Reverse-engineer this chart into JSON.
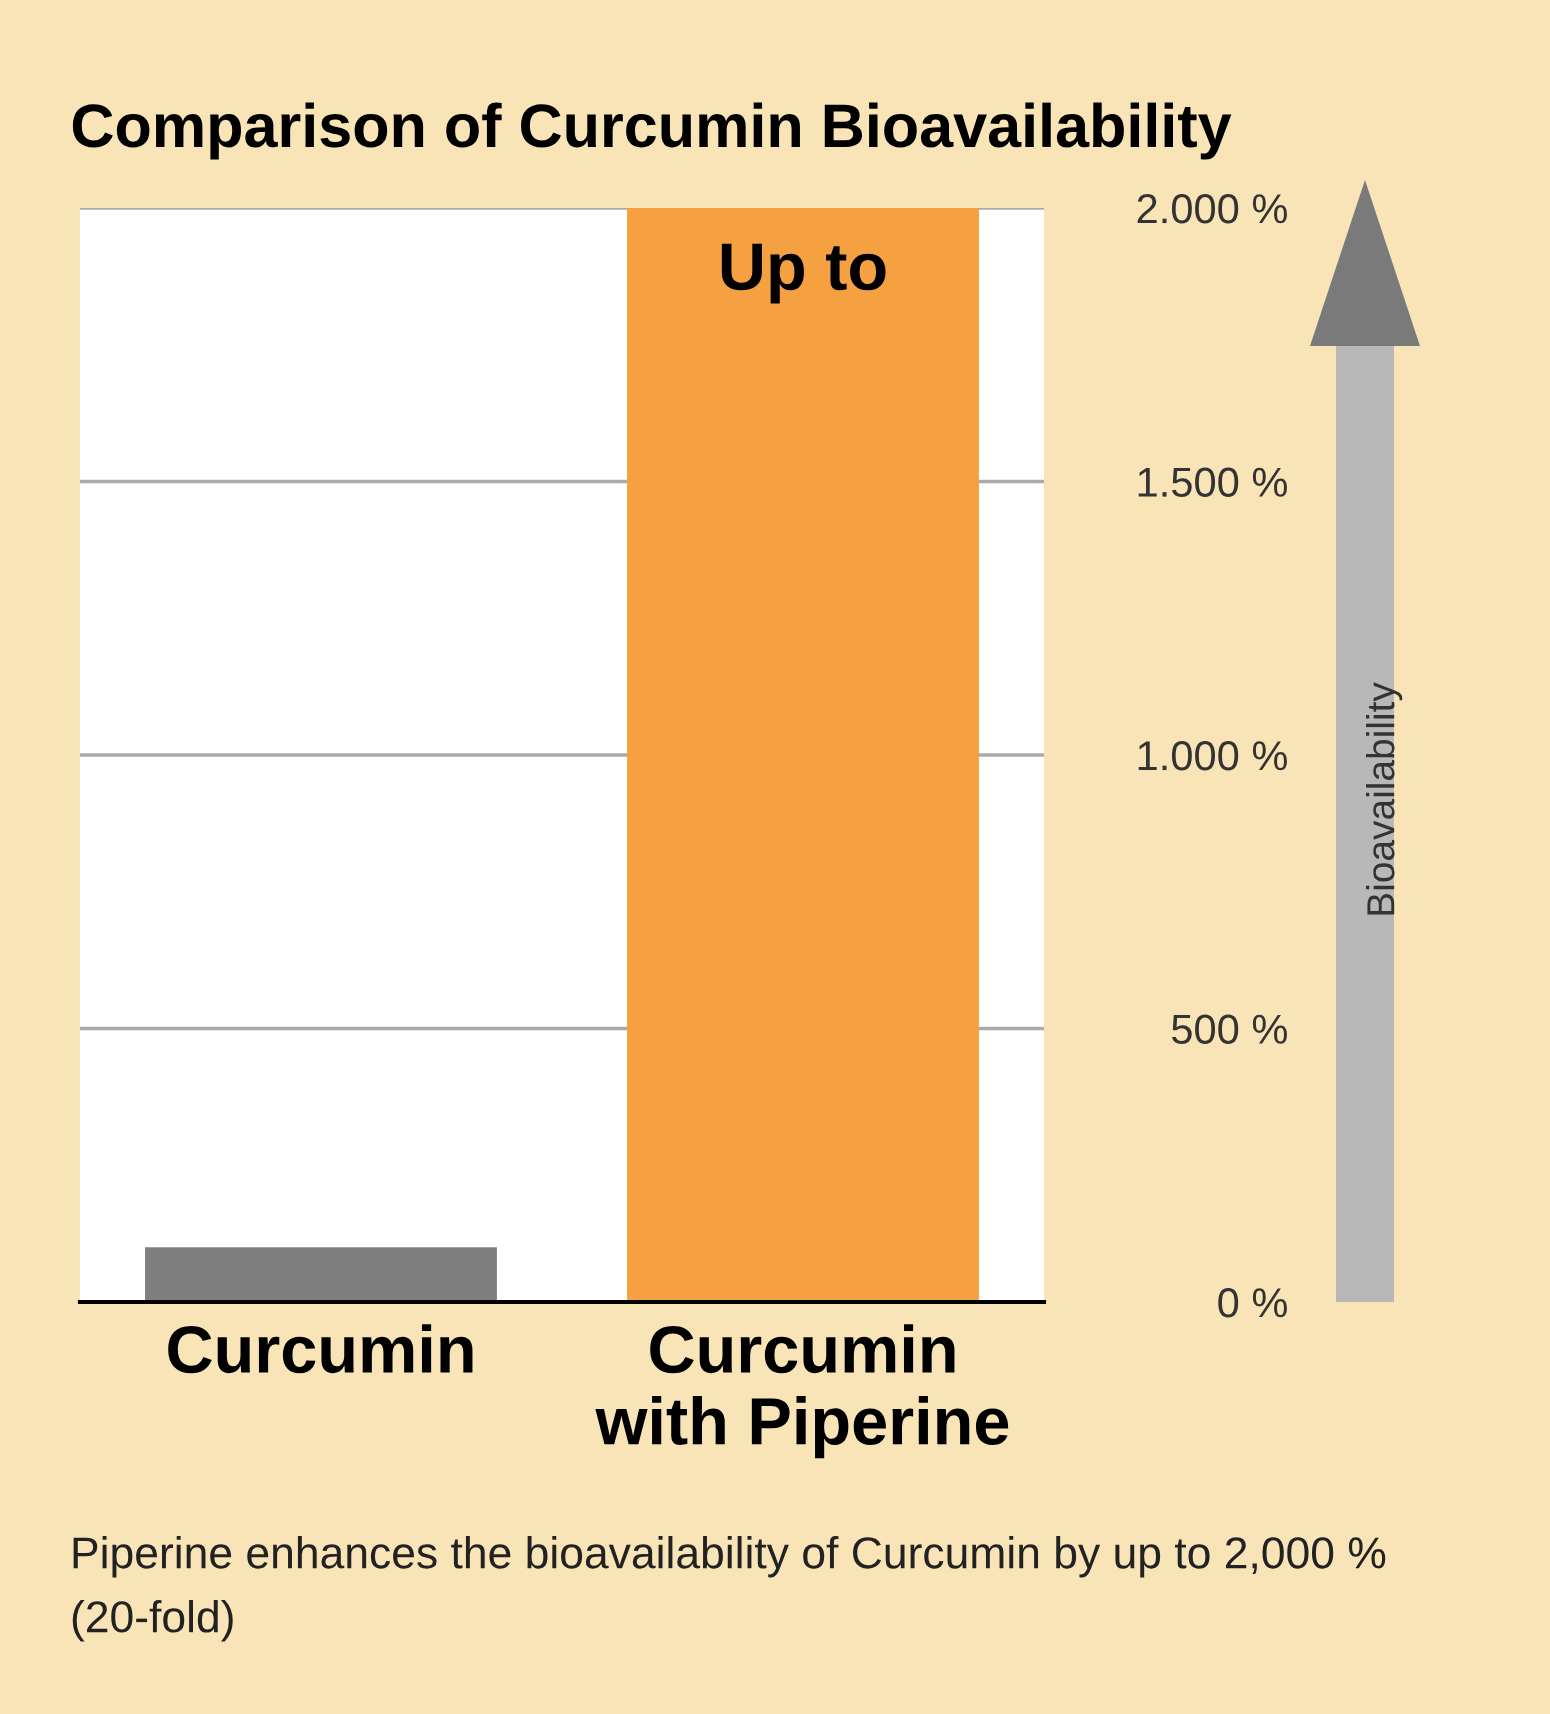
{
  "chart_data": {
    "type": "bar",
    "title": "Comparison of Curcumin Bioavailability",
    "categories": [
      "Curcumin",
      "Curcumin\nwith Piperine"
    ],
    "values": [
      100,
      2000
    ],
    "colors": [
      "#7f7f7f",
      "#f5a142"
    ],
    "ylabel": "Bioavailability",
    "ylim": [
      0,
      2000
    ],
    "yticks": [
      {
        "value": 0,
        "label": "0 %"
      },
      {
        "value": 500,
        "label": "500 %"
      },
      {
        "value": 1000,
        "label": "1.000 %"
      },
      {
        "value": 1500,
        "label": "1.500 %"
      },
      {
        "value": 2000,
        "label": "2.000 %"
      }
    ],
    "grid": "y",
    "annotations": [
      {
        "text": "Up to",
        "x": "Curcumin\nwith Piperine",
        "y": 2000
      },
      "Piperine enhances the bioavailability of Curcumin by up to 2,000 % (20-fold)"
    ]
  }
}
